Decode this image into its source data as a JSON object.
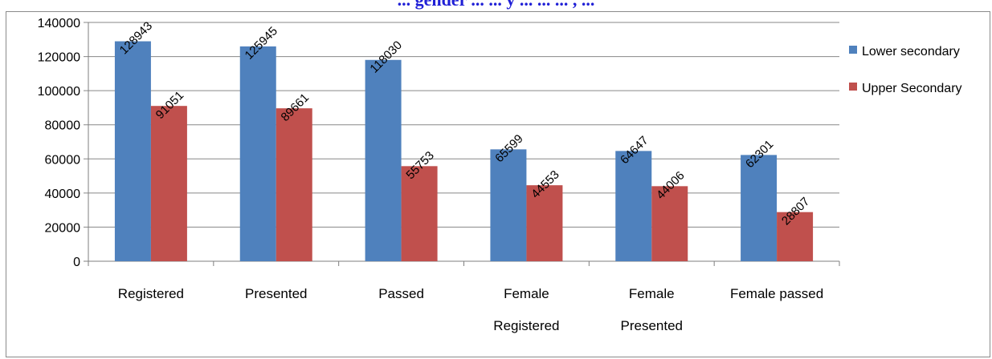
{
  "chart_data": {
    "type": "bar",
    "title": "... gender ... ... y ... ... ... , ...",
    "categories": [
      [
        "Registered"
      ],
      [
        "Presented"
      ],
      [
        "Passed"
      ],
      [
        "Female",
        "Registered"
      ],
      [
        "Female",
        "Presented"
      ],
      [
        "Female passed"
      ]
    ],
    "series": [
      {
        "name": "Lower secondary",
        "color": "#4f81bd",
        "values": [
          128943,
          125945,
          118030,
          65599,
          64647,
          62301
        ]
      },
      {
        "name": "Upper Secondary",
        "color": "#c0504d",
        "values": [
          91051,
          89661,
          55753,
          44553,
          44006,
          28807
        ]
      }
    ],
    "ylim": [
      0,
      140000
    ],
    "yticks": [
      0,
      20000,
      40000,
      60000,
      80000,
      100000,
      120000,
      140000
    ],
    "grid": true,
    "legend_position": "right"
  }
}
